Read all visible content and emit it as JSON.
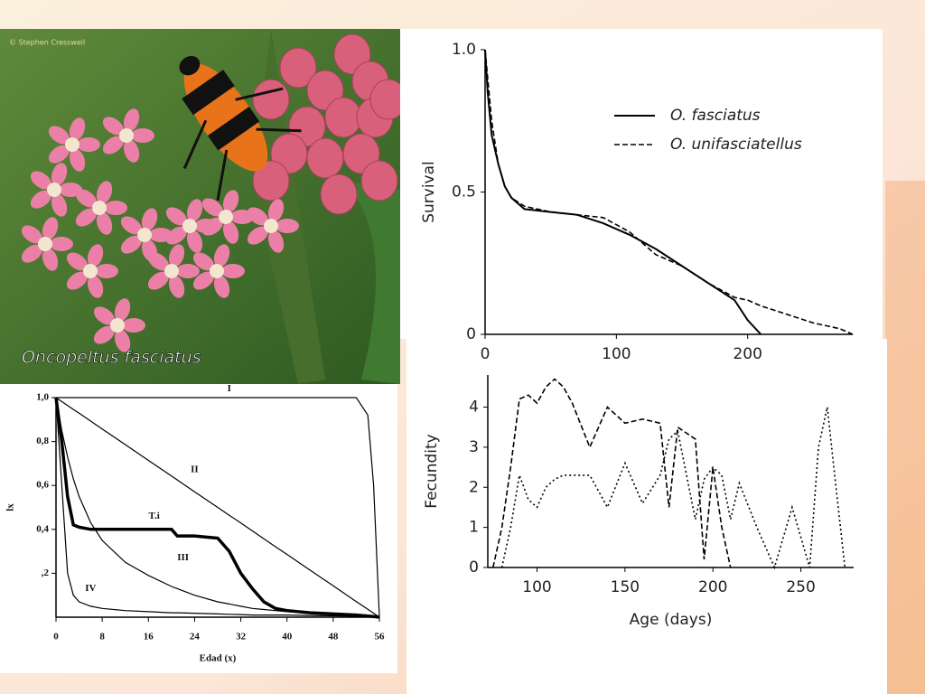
{
  "photo": {
    "caption": "Oncopeltus fasciatus",
    "credit": "© Stephen Cresswell"
  },
  "chart_data": [
    {
      "type": "line",
      "ylabel": "Survival",
      "x": [
        0,
        2,
        5,
        10,
        15,
        20,
        30,
        50,
        70,
        90,
        110,
        130,
        150,
        170,
        190,
        200,
        210,
        230,
        250,
        270,
        280
      ],
      "series": [
        {
          "name": "O. fasciatus",
          "color": "#000000",
          "dash": "solid",
          "values": [
            1.0,
            0.85,
            0.7,
            0.6,
            0.52,
            0.48,
            0.44,
            0.43,
            0.42,
            0.39,
            0.35,
            0.3,
            0.24,
            0.18,
            0.12,
            0.05,
            0.0,
            null,
            null,
            null,
            null
          ]
        },
        {
          "name": "O. unifasciatellus",
          "color": "#000000",
          "dash": "dashed",
          "values": [
            1.0,
            0.9,
            0.75,
            0.6,
            0.52,
            0.48,
            0.45,
            0.43,
            0.42,
            0.41,
            0.36,
            0.28,
            0.24,
            0.18,
            0.13,
            0.12,
            0.1,
            0.07,
            0.04,
            0.02,
            0.0
          ]
        }
      ],
      "xlim": [
        0,
        280
      ],
      "ylim": [
        0,
        1
      ],
      "xticks": [
        0,
        100,
        200
      ],
      "yticks": [
        0,
        0.5,
        {
          "value": 1,
          "label": "1.0"
        }
      ]
    },
    {
      "type": "line",
      "xlabel": "Age (days)",
      "ylabel": "Fecundity",
      "x": [
        75,
        80,
        85,
        90,
        95,
        100,
        105,
        110,
        115,
        120,
        130,
        140,
        150,
        160,
        170,
        175,
        180,
        190,
        195,
        200,
        205,
        210,
        215,
        225,
        235,
        245,
        255,
        260,
        265,
        270,
        275
      ],
      "series": [
        {
          "color": "#000000",
          "dash": "dashed",
          "values": [
            0,
            1,
            2.5,
            4.2,
            4.3,
            4.1,
            4.5,
            4.7,
            4.5,
            4.1,
            3,
            4,
            3.6,
            3.7,
            3.6,
            1.5,
            3.5,
            3.2,
            0.2,
            2.5,
            1,
            0,
            null,
            null,
            null,
            null,
            null,
            null,
            null,
            null,
            null
          ]
        },
        {
          "color": "#000000",
          "dash": "dotted",
          "values": [
            null,
            0,
            1,
            2.3,
            1.7,
            1.5,
            2,
            2.2,
            2.3,
            2.3,
            2.3,
            1.5,
            2.6,
            1.6,
            2.3,
            3.2,
            3.4,
            1.2,
            2.2,
            2.5,
            2.3,
            1.2,
            2.1,
            1,
            0,
            1.5,
            0,
            3,
            4,
            2,
            0
          ]
        }
      ],
      "xlim": [
        72,
        280
      ],
      "ylim": [
        0,
        4.8
      ],
      "xticks": [
        100,
        150,
        200,
        250
      ],
      "yticks": [
        0,
        1,
        2,
        3,
        4
      ]
    },
    {
      "type": "line",
      "xlabel": "Edad (x)",
      "ylabel": "lx",
      "x": [
        0,
        1,
        2,
        3,
        4,
        6,
        8,
        12,
        16,
        20,
        21,
        24,
        28,
        30,
        32,
        34,
        36,
        38,
        40,
        44,
        48,
        52,
        54,
        55,
        56
      ],
      "series": [
        {
          "name": "I",
          "color": "#000000",
          "dash": "solid",
          "values": [
            1,
            1,
            1,
            1,
            1,
            1,
            1,
            1,
            1,
            1,
            1,
            1,
            1,
            1,
            1,
            1,
            1,
            1,
            1,
            1,
            1,
            1,
            0.92,
            0.6,
            0
          ]
        },
        {
          "name": "II",
          "color": "#000000",
          "dash": "solid",
          "values": [
            1,
            0.982,
            0.964,
            0.946,
            0.929,
            0.893,
            0.857,
            0.786,
            0.714,
            0.643,
            0.625,
            0.571,
            0.5,
            0.464,
            0.429,
            0.393,
            0.357,
            0.321,
            0.286,
            0.214,
            0.143,
            0.071,
            0.036,
            0.018,
            0
          ]
        },
        {
          "name": "T.i",
          "color": "#000000",
          "dash": "bold",
          "values": [
            1,
            0.8,
            0.55,
            0.42,
            0.41,
            0.4,
            0.4,
            0.4,
            0.4,
            0.4,
            0.37,
            0.37,
            0.36,
            0.3,
            0.2,
            0.13,
            0.07,
            0.04,
            0.03,
            0.02,
            0.015,
            0.01,
            0.005,
            0.003,
            0
          ]
        },
        {
          "name": "III",
          "color": "#000000",
          "dash": "solid",
          "values": [
            1,
            0.85,
            0.73,
            0.63,
            0.55,
            0.43,
            0.35,
            0.25,
            0.19,
            0.14,
            0.13,
            0.1,
            0.07,
            0.06,
            0.05,
            0.04,
            0.035,
            0.03,
            0.025,
            0.02,
            0.015,
            0.01,
            0.005,
            0.003,
            0
          ]
        },
        {
          "name": "IV",
          "color": "#000000",
          "dash": "solid",
          "values": [
            1,
            0.6,
            0.2,
            0.1,
            0.07,
            0.05,
            0.04,
            0.03,
            0.025,
            0.02,
            0.02,
            0.018,
            0.015,
            0.013,
            0.012,
            0.01,
            0.01,
            0.01,
            0.01,
            0.008,
            0.006,
            0.004,
            0.002,
            0.001,
            0
          ]
        }
      ],
      "xlim": [
        0,
        56
      ],
      "ylim": [
        0,
        1
      ],
      "xticks": [
        0,
        8,
        16,
        24,
        32,
        40,
        48,
        56
      ],
      "yticks": [
        {
          "value": 0.2,
          "label": ",2"
        },
        {
          "value": 0.4,
          "label": "0,4"
        },
        {
          "value": 0.6,
          "label": "0,6"
        },
        {
          "value": 0.8,
          "label": "0,8"
        },
        {
          "value": 1,
          "label": "1,0"
        }
      ]
    }
  ]
}
